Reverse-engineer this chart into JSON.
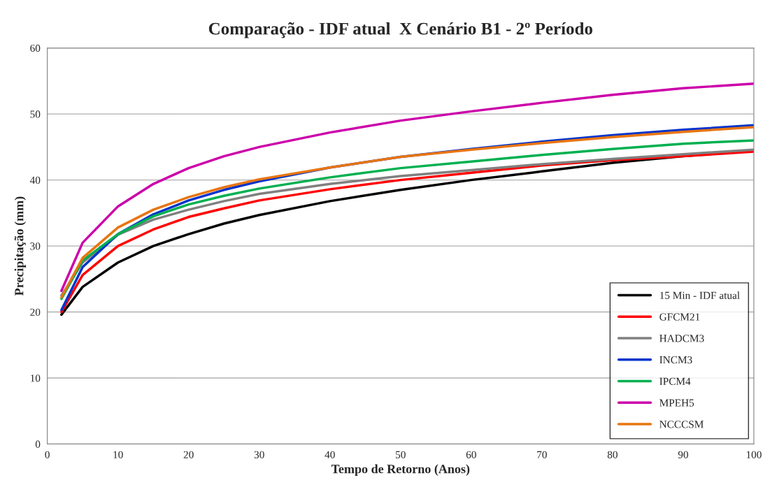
{
  "chart_data": {
    "type": "line",
    "title": "Comparação - IDF atual  X Cenário B1 - 2º Período",
    "xlabel": "Tempo de Retorno (Anos)",
    "ylabel": "Precipitação (mm)",
    "x": [
      2,
      5,
      10,
      15,
      20,
      25,
      30,
      40,
      50,
      60,
      70,
      80,
      90,
      100
    ],
    "series": [
      {
        "name": "15 Min - IDF atual",
        "color": "#000000",
        "values": [
          19.6,
          23.8,
          27.5,
          30,
          31.8,
          33.4,
          34.7,
          36.8,
          38.5,
          40.0,
          41.3,
          42.6,
          43.6,
          44.5
        ]
      },
      {
        "name": "GFCM21",
        "color": "#ff0000",
        "values": [
          20,
          25.6,
          30,
          32.5,
          34.4,
          35.7,
          36.9,
          38.6,
          40,
          41.1,
          42.2,
          43,
          43.6,
          44.3
        ]
      },
      {
        "name": "HADCM3",
        "color": "#808080",
        "values": [
          22.5,
          27.5,
          31.7,
          34,
          35.5,
          36.8,
          37.9,
          39.4,
          40.6,
          41.5,
          42.4,
          43.2,
          43.9,
          44.6
        ]
      },
      {
        "name": "INCM3",
        "color": "#0033cc",
        "values": [
          20.3,
          26.8,
          31.8,
          34.8,
          36.9,
          38.5,
          39.8,
          41.9,
          43.5,
          44.7,
          45.8,
          46.8,
          47.6,
          48.3
        ]
      },
      {
        "name": "IPCM4",
        "color": "#00b050",
        "values": [
          22,
          27.8,
          31.8,
          34.5,
          36.3,
          37.6,
          38.7,
          40.4,
          41.8,
          42.8,
          43.8,
          44.7,
          45.5,
          46
        ]
      },
      {
        "name": "MPEH5",
        "color": "#cc00aa",
        "values": [
          23.2,
          30.5,
          36,
          39.4,
          41.8,
          43.6,
          45,
          47.2,
          49,
          50.4,
          51.7,
          52.9,
          53.9,
          54.6
        ]
      },
      {
        "name": "NCCCSM",
        "color": "#e87511",
        "values": [
          22.2,
          28.2,
          32.8,
          35.5,
          37.4,
          38.9,
          40.1,
          41.9,
          43.5,
          44.6,
          45.6,
          46.5,
          47.3,
          48
        ]
      }
    ],
    "xlim": [
      0,
      100
    ],
    "xticks": [
      0,
      10,
      20,
      30,
      40,
      50,
      60,
      70,
      80,
      90,
      100
    ],
    "ylim": [
      0,
      60
    ],
    "yticks": [
      0,
      10,
      20,
      30,
      40,
      50,
      60
    ],
    "grid": "y",
    "legend": "bottom right",
    "line_style": "solid",
    "marker": "none"
  }
}
